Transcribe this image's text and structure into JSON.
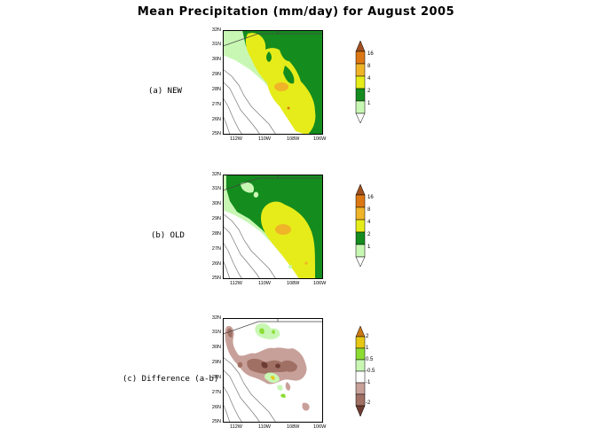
{
  "title": "Mean Precipitation (mm/day) for August 2005",
  "panels": [
    {
      "label": "(a) NEW",
      "lat_ticks": [
        "32N",
        "31N",
        "30N",
        "29N",
        "28N",
        "27N",
        "26N",
        "25N"
      ],
      "lon_ticks": [
        "112W",
        "110W",
        "108W",
        "106W"
      ],
      "colorbar": [
        "16",
        "8",
        "4",
        "2",
        "1"
      ]
    },
    {
      "label": "(b) OLD",
      "lat_ticks": [
        "32N",
        "31N",
        "30N",
        "29N",
        "28N",
        "27N",
        "26N",
        "25N"
      ],
      "lon_ticks": [
        "112W",
        "110W",
        "108W",
        "106W"
      ],
      "colorbar": [
        "16",
        "8",
        "4",
        "2",
        "1"
      ]
    },
    {
      "label": "(c) Difference (a-b)",
      "lat_ticks": [
        "32N",
        "31N",
        "30N",
        "29N",
        "28N",
        "27N",
        "26N",
        "25N"
      ],
      "lon_ticks": [
        "112W",
        "110W",
        "108W",
        "106W"
      ],
      "colorbar": [
        "2",
        "1",
        "0.5",
        "-0.5",
        "-1",
        "-2"
      ]
    }
  ],
  "colors": {
    "precip_scale": [
      "#ffffff",
      "#c8f7b4",
      "#148c1e",
      "#e6ec19",
      "#f0b428",
      "#dc7814",
      "#a0501e"
    ],
    "diff_scale": [
      "#6e3c32",
      "#a07064",
      "#c8a09a",
      "#ffffff",
      "#c8f7b4",
      "#8cdc32",
      "#e6c814",
      "#c87814"
    ]
  }
}
